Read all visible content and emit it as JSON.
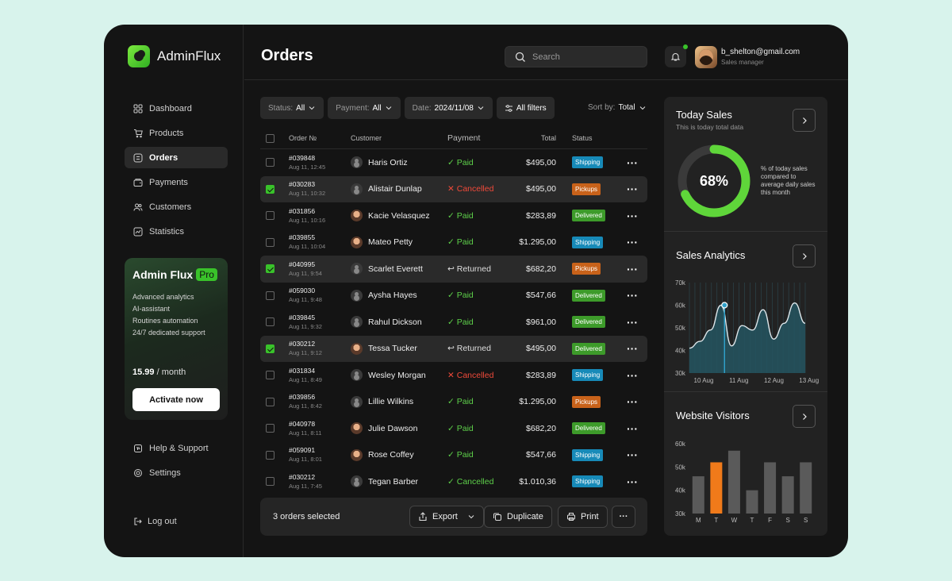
{
  "app": {
    "name": "AdminFlux"
  },
  "sidebar": {
    "items": [
      {
        "label": "Dashboard",
        "icon": "grid-icon"
      },
      {
        "label": "Products",
        "icon": "cart-icon"
      },
      {
        "label": "Orders",
        "icon": "list-icon",
        "active": true
      },
      {
        "label": "Payments",
        "icon": "wallet-icon"
      },
      {
        "label": "Customers",
        "icon": "users-icon"
      },
      {
        "label": "Statistics",
        "icon": "chart-icon"
      }
    ],
    "promo": {
      "title": "Admin Flux",
      "badge": "Pro",
      "features": [
        "Advanced analytics",
        "AI-assistant",
        "Routines automation",
        "24/7 dedicated support"
      ],
      "price": "15.99",
      "period": " / month",
      "cta": "Activate now"
    },
    "bottom_items": [
      {
        "label": "Help & Support",
        "icon": "support-icon"
      },
      {
        "label": "Settings",
        "icon": "gear-icon"
      }
    ],
    "logout": "Log out"
  },
  "header": {
    "title": "Orders",
    "search_placeholder": "Search",
    "user": {
      "email": "b_shelton@gmail.com",
      "role": "Sales manager"
    }
  },
  "filters": {
    "status": {
      "label": "Status:",
      "value": "All"
    },
    "payment": {
      "label": "Payment:",
      "value": "All"
    },
    "date": {
      "label": "Date:",
      "value": "2024/11/08"
    },
    "all_filters": "All filters",
    "sort": {
      "label": "Sort by:",
      "value": "Total"
    }
  },
  "table": {
    "columns": [
      "Order №",
      "Customer",
      "Payment",
      "Total",
      "Status"
    ],
    "rows": [
      {
        "id": "#039848",
        "date": "Aug 11, 12:45",
        "customer": "Haris Ortiz",
        "photo": false,
        "payment": "Paid",
        "pay_type": "ok",
        "total": "$495,00",
        "status": "Shipping",
        "status_type": "ship",
        "selected": false
      },
      {
        "id": "#030283",
        "date": "Aug 11, 10:32",
        "customer": "Alistair Dunlap",
        "photo": false,
        "payment": "Cancelled",
        "pay_type": "x",
        "total": "$495,00",
        "status": "Pickups",
        "status_type": "pick",
        "selected": true
      },
      {
        "id": "#031856",
        "date": "Aug 11, 10:16",
        "customer": "Kacie Velasquez",
        "photo": true,
        "payment": "Paid",
        "pay_type": "ok",
        "total": "$283,89",
        "status": "Delivered",
        "status_type": "del",
        "selected": false
      },
      {
        "id": "#039855",
        "date": "Aug 11, 10:04",
        "customer": "Mateo Petty",
        "photo": true,
        "payment": "Paid",
        "pay_type": "ok",
        "total": "$1.295,00",
        "status": "Shipping",
        "status_type": "ship",
        "selected": false
      },
      {
        "id": "#040995",
        "date": "Aug 11, 9:54",
        "customer": "Scarlet Everett",
        "photo": false,
        "payment": "Returned",
        "pay_type": "r",
        "total": "$682,20",
        "status": "Pickups",
        "status_type": "pick",
        "selected": true
      },
      {
        "id": "#059030",
        "date": "Aug 11, 9:48",
        "customer": "Aysha Hayes",
        "photo": false,
        "payment": "Paid",
        "pay_type": "ok",
        "total": "$547,66",
        "status": "Delivered",
        "status_type": "del",
        "selected": false
      },
      {
        "id": "#039845",
        "date": "Aug 11, 9:32",
        "customer": "Rahul Dickson",
        "photo": false,
        "payment": "Paid",
        "pay_type": "ok",
        "total": "$961,00",
        "status": "Delivered",
        "status_type": "del",
        "selected": false
      },
      {
        "id": "#030212",
        "date": "Aug 11, 9:12",
        "customer": "Tessa Tucker",
        "photo": true,
        "payment": "Returned",
        "pay_type": "r",
        "total": "$495,00",
        "status": "Delivered",
        "status_type": "del",
        "selected": true
      },
      {
        "id": "#031834",
        "date": "Aug 11, 8:49",
        "customer": "Wesley Morgan",
        "photo": false,
        "payment": "Cancelled",
        "pay_type": "x",
        "total": "$283,89",
        "status": "Shipping",
        "status_type": "ship",
        "selected": false
      },
      {
        "id": "#039856",
        "date": "Aug 11, 8:42",
        "customer": "Lillie Wilkins",
        "photo": false,
        "payment": "Paid",
        "pay_type": "ok",
        "total": "$1.295,00",
        "status": "Pickups",
        "status_type": "pick",
        "selected": false
      },
      {
        "id": "#040978",
        "date": "Aug 11, 8:11",
        "customer": "Julie Dawson",
        "photo": true,
        "payment": "Paid",
        "pay_type": "ok",
        "total": "$682,20",
        "status": "Delivered",
        "status_type": "del",
        "selected": false
      },
      {
        "id": "#059091",
        "date": "Aug 11, 8:01",
        "customer": "Rose Coffey",
        "photo": true,
        "payment": "Paid",
        "pay_type": "ok",
        "total": "$547,66",
        "status": "Shipping",
        "status_type": "ship",
        "selected": false
      },
      {
        "id": "#030212",
        "date": "Aug 11, 7:45",
        "customer": "Tegan Barber",
        "photo": false,
        "payment": "Cancelled",
        "pay_type": "ok",
        "total": "$1.010,36",
        "status": "Shipping",
        "status_type": "ship",
        "selected": false
      }
    ]
  },
  "bulk": {
    "selected_text": "3 orders selected",
    "export": "Export",
    "duplicate": "Duplicate",
    "print": "Print"
  },
  "today_sales": {
    "title": "Today Sales",
    "subtitle": "This is today total data",
    "percent": 68,
    "percent_label": "68%",
    "note": "% of today sales compared to average daily sales this month"
  },
  "chart_data": [
    {
      "type": "area",
      "title": "Sales Analytics",
      "x_ticks": [
        "10 Aug",
        "11 Aug",
        "12 Aug",
        "13 Aug"
      ],
      "y_ticks": [
        "70k",
        "60k",
        "50k",
        "40k",
        "30k"
      ],
      "ylim": [
        30000,
        70000
      ],
      "x": [
        0,
        0.3,
        0.6,
        0.9,
        1.2,
        1.5,
        1.8,
        2.1,
        2.4,
        2.7,
        3.0,
        3.3
      ],
      "y": [
        41000,
        44000,
        49000,
        60000,
        42000,
        51000,
        49000,
        58000,
        45000,
        52000,
        61000,
        52000
      ],
      "highlight": {
        "x": 1.0,
        "y": 60000
      },
      "colors": {
        "line": "#dde6ea",
        "fill": "#245560",
        "highlight": "#2fa0c8"
      }
    },
    {
      "type": "bar",
      "title": "Website Visitors",
      "categories": [
        "M",
        "T",
        "W",
        "T",
        "F",
        "S",
        "S"
      ],
      "values": [
        46000,
        52000,
        57000,
        40000,
        52000,
        46000,
        52000
      ],
      "y_ticks": [
        "60k",
        "50k",
        "40k",
        "30k"
      ],
      "ylim": [
        30000,
        60000
      ],
      "highlight_index": 1,
      "colors": {
        "bar": "#5a5a5a",
        "highlight": "#f07a1a"
      }
    }
  ],
  "colors": {
    "accent": "#39c22a",
    "background": "#141414",
    "panel": "#222222"
  }
}
